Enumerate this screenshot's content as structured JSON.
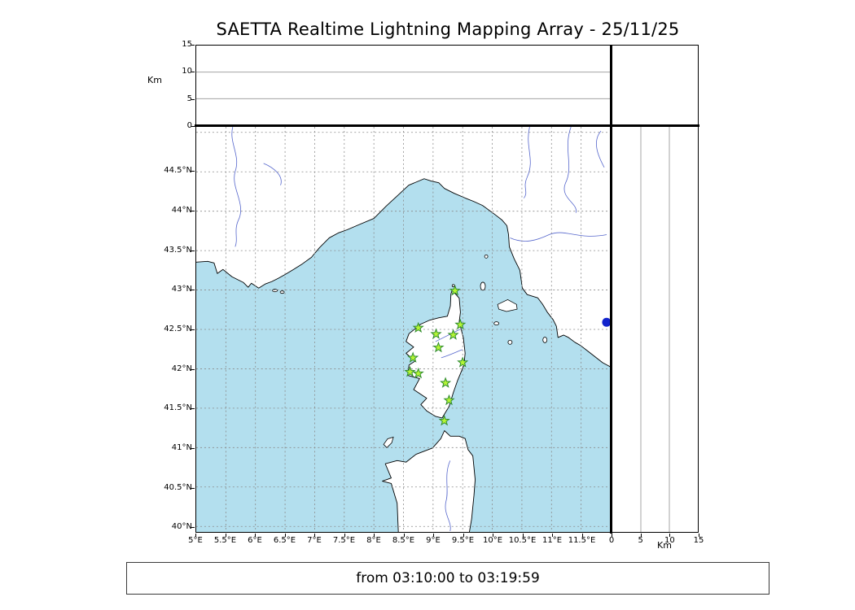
{
  "title": "SAETTA Realtime Lightning Mapping Array - 25/11/25",
  "status_text": "from 03:10:00 to 03:19:59",
  "labels": {
    "km_left": "Km",
    "km_bottom": "Km"
  },
  "altitude_axis": {
    "unit": "Km",
    "min": 0,
    "max": 15,
    "ticks": [
      0,
      5,
      10,
      15
    ],
    "gridlines": [
      5,
      10
    ]
  },
  "right_axis": {
    "unit": "Km",
    "min": 0,
    "max": 15,
    "ticks": [
      0,
      5,
      10,
      15
    ],
    "gridlines": [
      5,
      10
    ]
  },
  "map": {
    "extent": {
      "lon_min": 5.0,
      "lon_max": 12.0,
      "lat_min": 39.93,
      "lat_max": 45.07
    },
    "lon_ticks": [
      {
        "v": 5.0,
        "label": "5°E"
      },
      {
        "v": 5.5,
        "label": "5.5°E"
      },
      {
        "v": 6.0,
        "label": "6°E"
      },
      {
        "v": 6.5,
        "label": "6.5°E"
      },
      {
        "v": 7.0,
        "label": "7°E"
      },
      {
        "v": 7.5,
        "label": "7.5°E"
      },
      {
        "v": 8.0,
        "label": "8°E"
      },
      {
        "v": 8.5,
        "label": "8.5°E"
      },
      {
        "v": 9.0,
        "label": "9°E"
      },
      {
        "v": 9.5,
        "label": "9.5°E"
      },
      {
        "v": 10.0,
        "label": "10°E"
      },
      {
        "v": 10.5,
        "label": "10.5°E"
      },
      {
        "v": 11.0,
        "label": "11°E"
      },
      {
        "v": 11.5,
        "label": "11.5°E"
      }
    ],
    "lat_ticks": [
      {
        "v": 44.5,
        "label": "44.5°N"
      },
      {
        "v": 44.0,
        "label": "44°N"
      },
      {
        "v": 43.5,
        "label": "43.5°N"
      },
      {
        "v": 43.0,
        "label": "43°N"
      },
      {
        "v": 42.5,
        "label": "42.5°N"
      },
      {
        "v": 42.0,
        "label": "42°N"
      },
      {
        "v": 41.5,
        "label": "41.5°N"
      },
      {
        "v": 41.0,
        "label": "41°N"
      },
      {
        "v": 40.5,
        "label": "40.5°N"
      },
      {
        "v": 40.0,
        "label": "40°N"
      }
    ],
    "lon_gridlines": [
      5.5,
      6.0,
      6.5,
      7.0,
      7.5,
      8.0,
      8.5,
      9.0,
      9.5,
      10.0,
      10.5,
      11.0,
      11.5
    ],
    "lat_gridlines": [
      40.0,
      40.5,
      41.0,
      41.5,
      42.0,
      42.5,
      43.0,
      43.5,
      44.0,
      44.5,
      45.0
    ],
    "stations": [
      {
        "lon": 9.37,
        "lat": 42.99
      },
      {
        "lon": 8.75,
        "lat": 42.52
      },
      {
        "lon": 9.05,
        "lat": 42.44
      },
      {
        "lon": 9.34,
        "lat": 42.43
      },
      {
        "lon": 9.46,
        "lat": 42.56
      },
      {
        "lon": 9.09,
        "lat": 42.27
      },
      {
        "lon": 8.66,
        "lat": 42.14
      },
      {
        "lon": 9.5,
        "lat": 42.08
      },
      {
        "lon": 8.61,
        "lat": 41.96
      },
      {
        "lon": 8.75,
        "lat": 41.94
      },
      {
        "lon": 9.21,
        "lat": 41.82
      },
      {
        "lon": 9.27,
        "lat": 41.6
      },
      {
        "lon": 9.19,
        "lat": 41.34
      }
    ],
    "lake": {
      "lon": 11.93,
      "lat": 42.59
    }
  },
  "colors": {
    "sea": "#b3dfee",
    "land": "#ffffff",
    "coast": "#000000",
    "river": "#5566cc",
    "grid": "#8a8a8a",
    "station_fill": "#b4f535",
    "station_edge": "#2e8b2e",
    "lake": "#1122cc"
  }
}
